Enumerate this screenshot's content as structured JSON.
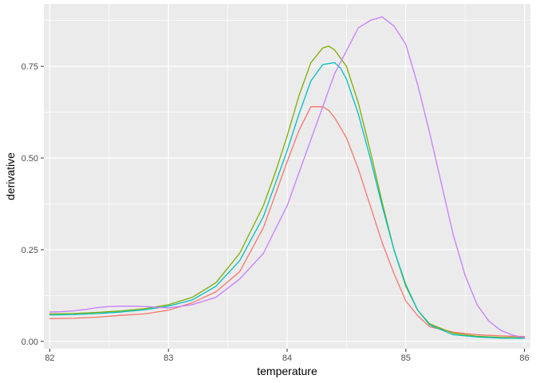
{
  "chart_data": {
    "type": "line",
    "title": "",
    "xlabel": "temperature",
    "ylabel": "derivative",
    "xlim": [
      81.95,
      86.05
    ],
    "ylim": [
      -0.02,
      0.92
    ],
    "x_ticks": [
      82,
      83,
      84,
      85,
      86
    ],
    "x_tick_labels": [
      "82",
      "83",
      "84",
      "85",
      "86"
    ],
    "y_ticks": [
      0.0,
      0.25,
      0.5,
      0.75
    ],
    "y_tick_labels": [
      "0.00",
      "0.25",
      "0.50",
      "0.75"
    ],
    "grid": true,
    "legend": "none",
    "colors": {
      "panel_background": "#EBEBEB",
      "grid": "#FFFFFF"
    },
    "series": [
      {
        "color": "#F8766D",
        "x": [
          82.0,
          82.2,
          82.4,
          82.6,
          82.8,
          83.0,
          83.2,
          83.4,
          83.6,
          83.8,
          83.9,
          84.0,
          84.1,
          84.2,
          84.3,
          84.35,
          84.4,
          84.5,
          84.6,
          84.7,
          84.8,
          84.9,
          85.0,
          85.1,
          85.2,
          85.4,
          85.6,
          85.8,
          86.0
        ],
        "y": [
          0.062,
          0.063,
          0.066,
          0.071,
          0.075,
          0.085,
          0.105,
          0.135,
          0.19,
          0.31,
          0.4,
          0.49,
          0.575,
          0.64,
          0.64,
          0.63,
          0.61,
          0.555,
          0.47,
          0.37,
          0.27,
          0.185,
          0.11,
          0.07,
          0.04,
          0.025,
          0.018,
          0.015,
          0.013
        ]
      },
      {
        "color": "#7CAE00",
        "x": [
          82.0,
          82.2,
          82.4,
          82.6,
          82.8,
          83.0,
          83.2,
          83.4,
          83.6,
          83.8,
          83.9,
          84.0,
          84.1,
          84.2,
          84.3,
          84.35,
          84.4,
          84.5,
          84.6,
          84.7,
          84.8,
          84.9,
          85.0,
          85.1,
          85.2,
          85.4,
          85.6,
          85.8,
          86.0
        ],
        "y": [
          0.075,
          0.076,
          0.079,
          0.083,
          0.089,
          0.1,
          0.12,
          0.16,
          0.24,
          0.37,
          0.46,
          0.56,
          0.67,
          0.76,
          0.8,
          0.805,
          0.795,
          0.75,
          0.65,
          0.52,
          0.38,
          0.25,
          0.15,
          0.085,
          0.048,
          0.022,
          0.014,
          0.011,
          0.01
        ]
      },
      {
        "color": "#00BFC4",
        "x": [
          82.0,
          82.2,
          82.4,
          82.6,
          82.8,
          83.0,
          83.2,
          83.4,
          83.6,
          83.8,
          83.9,
          84.0,
          84.1,
          84.2,
          84.3,
          84.4,
          84.45,
          84.5,
          84.6,
          84.7,
          84.8,
          84.9,
          85.0,
          85.1,
          85.2,
          85.4,
          85.6,
          85.8,
          86.0
        ],
        "y": [
          0.072,
          0.073,
          0.076,
          0.08,
          0.086,
          0.096,
          0.113,
          0.15,
          0.22,
          0.34,
          0.43,
          0.52,
          0.62,
          0.71,
          0.755,
          0.76,
          0.745,
          0.715,
          0.62,
          0.5,
          0.37,
          0.25,
          0.155,
          0.085,
          0.045,
          0.018,
          0.012,
          0.009,
          0.008
        ]
      },
      {
        "color": "#C77CFF",
        "x": [
          82.0,
          82.1,
          82.2,
          82.3,
          82.4,
          82.5,
          82.6,
          82.7,
          82.8,
          82.9,
          83.0,
          83.2,
          83.4,
          83.6,
          83.8,
          84.0,
          84.2,
          84.4,
          84.6,
          84.7,
          84.8,
          84.9,
          85.0,
          85.1,
          85.2,
          85.3,
          85.4,
          85.5,
          85.6,
          85.7,
          85.8,
          85.9,
          86.0
        ],
        "y": [
          0.08,
          0.081,
          0.083,
          0.087,
          0.092,
          0.095,
          0.096,
          0.096,
          0.095,
          0.093,
          0.091,
          0.1,
          0.12,
          0.17,
          0.24,
          0.37,
          0.55,
          0.73,
          0.855,
          0.875,
          0.885,
          0.86,
          0.81,
          0.7,
          0.57,
          0.43,
          0.29,
          0.18,
          0.1,
          0.055,
          0.03,
          0.017,
          0.01
        ]
      }
    ]
  }
}
